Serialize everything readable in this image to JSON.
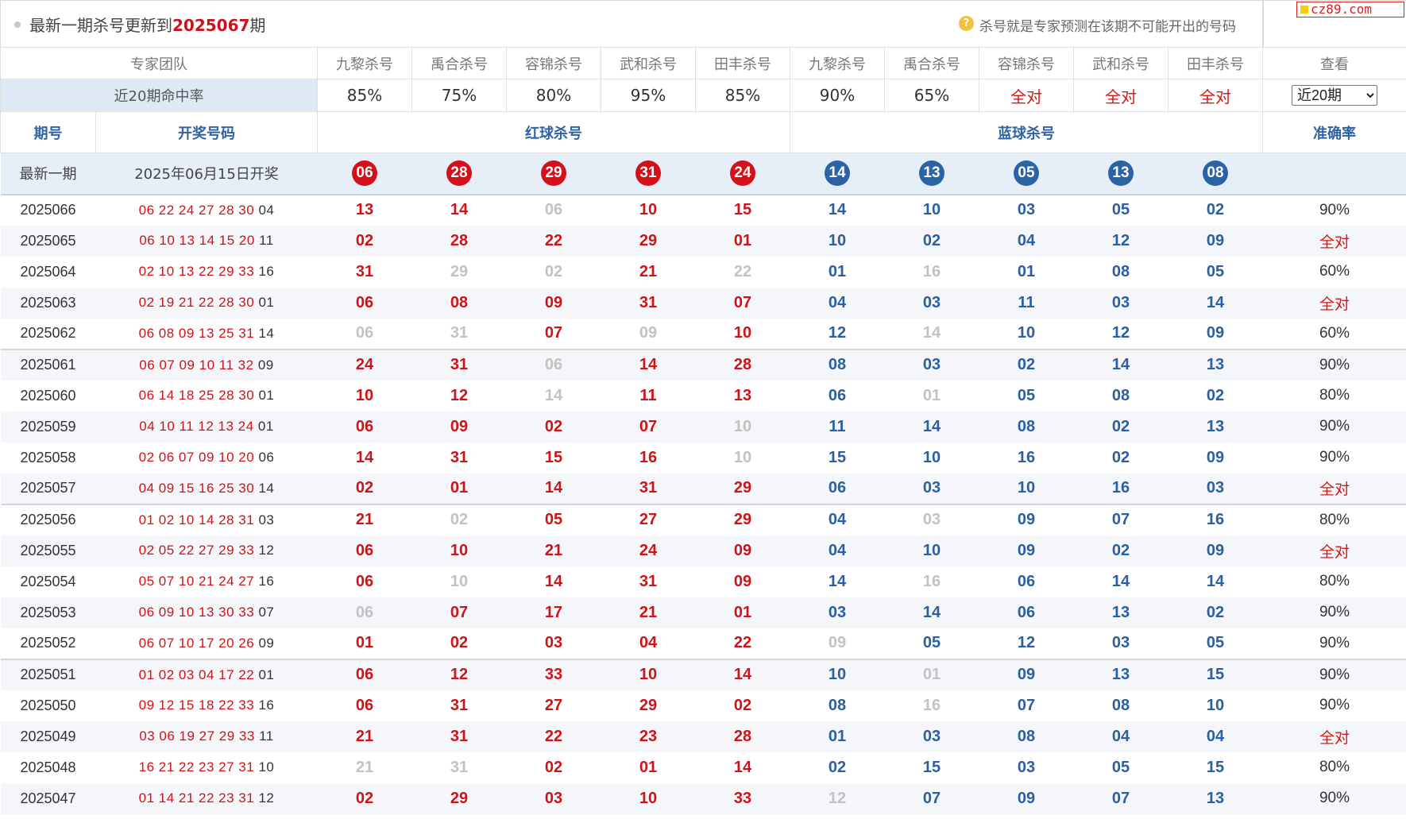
{
  "header": {
    "title_prefix": "最新一期杀号更新到",
    "title_issue": "2025067",
    "title_suffix": "期",
    "help_icon": "question-icon",
    "note": "杀号就是专家预测在该期不可能开出的号码",
    "logo": "cz89.com"
  },
  "experts": {
    "team_label": "专家团队",
    "names": [
      "九黎杀号",
      "禹合杀号",
      "容锦杀号",
      "武和杀号",
      "田丰杀号",
      "九黎杀号",
      "禹合杀号",
      "容锦杀号",
      "武和杀号",
      "田丰杀号"
    ],
    "view_label": "查看",
    "hit_rate_label": "近20期命中率",
    "hit_rates": [
      "85%",
      "75%",
      "80%",
      "95%",
      "85%",
      "90%",
      "65%",
      "全对",
      "全对",
      "全对"
    ],
    "period_select": "近20期",
    "period_options": [
      "近20期"
    ]
  },
  "columns": {
    "issue": "期号",
    "draw": "开奖号码",
    "red_kill": "红球杀号",
    "blue_kill": "蓝球杀号",
    "accuracy": "准确率"
  },
  "latest": {
    "label": "最新一期",
    "draw_date": "2025年06月15日开奖",
    "red_kills": [
      "06",
      "28",
      "29",
      "31",
      "24"
    ],
    "blue_kills": [
      "14",
      "13",
      "05",
      "13",
      "08"
    ]
  },
  "colors": {
    "red": "#cd1418",
    "blue": "#2c5fa0",
    "miss": "#c2c2c2",
    "header_blue": "#2f63a3",
    "row_alt": "#f4f6fa"
  },
  "rows": [
    {
      "issue": "2025066",
      "red_draw": "06 22 24 27 28 30",
      "blue_draw": "04",
      "kills": [
        "13",
        "14",
        "06",
        "10",
        "15",
        "14",
        "10",
        "03",
        "05",
        "02"
      ],
      "miss": [
        false,
        false,
        true,
        false,
        false,
        false,
        false,
        false,
        false,
        false
      ],
      "accuracy": "90%"
    },
    {
      "issue": "2025065",
      "red_draw": "06 10 13 14 15 20",
      "blue_draw": "11",
      "kills": [
        "02",
        "28",
        "22",
        "29",
        "01",
        "10",
        "02",
        "04",
        "12",
        "09"
      ],
      "miss": [
        false,
        false,
        false,
        false,
        false,
        false,
        false,
        false,
        false,
        false
      ],
      "accuracy": "全对"
    },
    {
      "issue": "2025064",
      "red_draw": "02 10 13 22 29 33",
      "blue_draw": "16",
      "kills": [
        "31",
        "29",
        "02",
        "21",
        "22",
        "01",
        "16",
        "01",
        "08",
        "05"
      ],
      "miss": [
        false,
        true,
        true,
        false,
        true,
        false,
        true,
        false,
        false,
        false
      ],
      "accuracy": "60%"
    },
    {
      "issue": "2025063",
      "red_draw": "02 19 21 22 28 30",
      "blue_draw": "01",
      "kills": [
        "06",
        "08",
        "09",
        "31",
        "07",
        "04",
        "03",
        "11",
        "03",
        "14"
      ],
      "miss": [
        false,
        false,
        false,
        false,
        false,
        false,
        false,
        false,
        false,
        false
      ],
      "accuracy": "全对"
    },
    {
      "issue": "2025062",
      "red_draw": "06 08 09 13 25 31",
      "blue_draw": "14",
      "kills": [
        "06",
        "31",
        "07",
        "09",
        "10",
        "12",
        "14",
        "10",
        "12",
        "09"
      ],
      "miss": [
        true,
        true,
        false,
        true,
        false,
        false,
        true,
        false,
        false,
        false
      ],
      "accuracy": "60%"
    },
    {
      "issue": "2025061",
      "red_draw": "06 07 09 10 11 32",
      "blue_draw": "09",
      "kills": [
        "24",
        "31",
        "06",
        "14",
        "28",
        "08",
        "03",
        "02",
        "14",
        "13"
      ],
      "miss": [
        false,
        false,
        true,
        false,
        false,
        false,
        false,
        false,
        false,
        false
      ],
      "accuracy": "90%"
    },
    {
      "issue": "2025060",
      "red_draw": "06 14 18 25 28 30",
      "blue_draw": "01",
      "kills": [
        "10",
        "12",
        "14",
        "11",
        "13",
        "06",
        "01",
        "05",
        "08",
        "02"
      ],
      "miss": [
        false,
        false,
        true,
        false,
        false,
        false,
        true,
        false,
        false,
        false
      ],
      "accuracy": "80%"
    },
    {
      "issue": "2025059",
      "red_draw": "04 10 11 12 13 24",
      "blue_draw": "01",
      "kills": [
        "06",
        "09",
        "02",
        "07",
        "10",
        "11",
        "14",
        "08",
        "02",
        "13"
      ],
      "miss": [
        false,
        false,
        false,
        false,
        true,
        false,
        false,
        false,
        false,
        false
      ],
      "accuracy": "90%"
    },
    {
      "issue": "2025058",
      "red_draw": "02 06 07 09 10 20",
      "blue_draw": "06",
      "kills": [
        "14",
        "31",
        "15",
        "16",
        "10",
        "15",
        "10",
        "16",
        "02",
        "09"
      ],
      "miss": [
        false,
        false,
        false,
        false,
        true,
        false,
        false,
        false,
        false,
        false
      ],
      "accuracy": "90%"
    },
    {
      "issue": "2025057",
      "red_draw": "04 09 15 16 25 30",
      "blue_draw": "14",
      "kills": [
        "02",
        "01",
        "14",
        "31",
        "29",
        "06",
        "03",
        "10",
        "16",
        "03"
      ],
      "miss": [
        false,
        false,
        false,
        false,
        false,
        false,
        false,
        false,
        false,
        false
      ],
      "accuracy": "全对"
    },
    {
      "issue": "2025056",
      "red_draw": "01 02 10 14 28 31",
      "blue_draw": "03",
      "kills": [
        "21",
        "02",
        "05",
        "27",
        "29",
        "04",
        "03",
        "09",
        "07",
        "16"
      ],
      "miss": [
        false,
        true,
        false,
        false,
        false,
        false,
        true,
        false,
        false,
        false
      ],
      "accuracy": "80%"
    },
    {
      "issue": "2025055",
      "red_draw": "02 05 22 27 29 33",
      "blue_draw": "12",
      "kills": [
        "06",
        "10",
        "21",
        "24",
        "09",
        "04",
        "10",
        "09",
        "02",
        "09"
      ],
      "miss": [
        false,
        false,
        false,
        false,
        false,
        false,
        false,
        false,
        false,
        false
      ],
      "accuracy": "全对"
    },
    {
      "issue": "2025054",
      "red_draw": "05 07 10 21 24 27",
      "blue_draw": "16",
      "kills": [
        "06",
        "10",
        "14",
        "31",
        "09",
        "14",
        "16",
        "06",
        "14",
        "14"
      ],
      "miss": [
        false,
        true,
        false,
        false,
        false,
        false,
        true,
        false,
        false,
        false
      ],
      "accuracy": "80%"
    },
    {
      "issue": "2025053",
      "red_draw": "06 09 10 13 30 33",
      "blue_draw": "07",
      "kills": [
        "06",
        "07",
        "17",
        "21",
        "01",
        "03",
        "14",
        "06",
        "13",
        "02"
      ],
      "miss": [
        true,
        false,
        false,
        false,
        false,
        false,
        false,
        false,
        false,
        false
      ],
      "accuracy": "90%"
    },
    {
      "issue": "2025052",
      "red_draw": "06 07 10 17 20 26",
      "blue_draw": "09",
      "kills": [
        "01",
        "02",
        "03",
        "04",
        "22",
        "09",
        "05",
        "12",
        "03",
        "05"
      ],
      "miss": [
        false,
        false,
        false,
        false,
        false,
        true,
        false,
        false,
        false,
        false
      ],
      "accuracy": "90%"
    },
    {
      "issue": "2025051",
      "red_draw": "01 02 03 04 17 22",
      "blue_draw": "01",
      "kills": [
        "06",
        "12",
        "33",
        "10",
        "14",
        "10",
        "01",
        "09",
        "13",
        "15"
      ],
      "miss": [
        false,
        false,
        false,
        false,
        false,
        false,
        true,
        false,
        false,
        false
      ],
      "accuracy": "90%"
    },
    {
      "issue": "2025050",
      "red_draw": "09 12 15 18 22 33",
      "blue_draw": "16",
      "kills": [
        "06",
        "31",
        "27",
        "29",
        "02",
        "08",
        "16",
        "07",
        "08",
        "10"
      ],
      "miss": [
        false,
        false,
        false,
        false,
        false,
        false,
        true,
        false,
        false,
        false
      ],
      "accuracy": "90%"
    },
    {
      "issue": "2025049",
      "red_draw": "03 06 19 27 29 33",
      "blue_draw": "11",
      "kills": [
        "21",
        "31",
        "22",
        "23",
        "28",
        "01",
        "03",
        "08",
        "04",
        "04"
      ],
      "miss": [
        false,
        false,
        false,
        false,
        false,
        false,
        false,
        false,
        false,
        false
      ],
      "accuracy": "全对"
    },
    {
      "issue": "2025048",
      "red_draw": "16 21 22 23 27 31",
      "blue_draw": "10",
      "kills": [
        "21",
        "31",
        "02",
        "01",
        "14",
        "02",
        "15",
        "03",
        "05",
        "15"
      ],
      "miss": [
        true,
        true,
        false,
        false,
        false,
        false,
        false,
        false,
        false,
        false
      ],
      "accuracy": "80%"
    },
    {
      "issue": "2025047",
      "red_draw": "01 14 21 22 23 31",
      "blue_draw": "12",
      "kills": [
        "02",
        "29",
        "03",
        "10",
        "33",
        "12",
        "07",
        "09",
        "07",
        "13"
      ],
      "miss": [
        false,
        false,
        false,
        false,
        false,
        true,
        false,
        false,
        false,
        false
      ],
      "accuracy": "90%"
    }
  ]
}
